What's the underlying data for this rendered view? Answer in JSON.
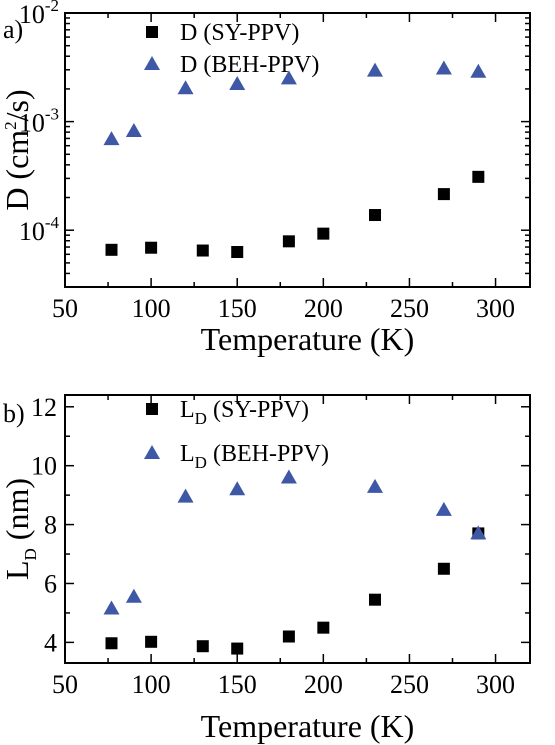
{
  "figure": {
    "chart_data": [
      {
        "panel_label": "a)",
        "type": "scatter",
        "xlabel": "Temperature (K)",
        "ylabel": "D (cm²/s)",
        "ylabel_parts": {
          "pre": "D (cm",
          "sup": "2",
          "post": "/s)"
        },
        "xlim": [
          50,
          320
        ],
        "ylim": [
          3e-05,
          0.01
        ],
        "yscale": "log",
        "xticks": [
          50,
          100,
          150,
          200,
          250,
          300
        ],
        "xtick_labels": [
          "50",
          "100",
          "150",
          "200",
          "250",
          "300"
        ],
        "yticks": [
          0.0001,
          0.001,
          0.01
        ],
        "ytick_labels": [
          {
            "base": "10",
            "exp": "-4"
          },
          {
            "base": "10",
            "exp": "-3"
          },
          {
            "base": "10",
            "exp": "-2"
          }
        ],
        "grid": false,
        "legend_position": "top-left",
        "series": [
          {
            "name": "D (SY-PPV)",
            "name_parts": {
              "main": "D (SY-PPV)",
              "sub": ""
            },
            "marker": "square",
            "color": "#000000",
            "x": [
              77,
              100,
              130,
              150,
              180,
              200,
              230,
              270,
              290
            ],
            "y": [
              6.6e-05,
              6.9e-05,
              6.5e-05,
              6.3e-05,
              7.9e-05,
              9.3e-05,
              0.000138,
              0.000215,
              0.00031
            ]
          },
          {
            "name": "D (BEH-PPV)",
            "name_parts": {
              "main": "D (BEH-PPV)",
              "sub": ""
            },
            "marker": "triangle",
            "color": "#3f58a6",
            "x": [
              77,
              90,
              120,
              150,
              180,
              230,
              270,
              290
            ],
            "y": [
              0.00069,
              0.00082,
              0.00203,
              0.00222,
              0.0025,
              0.00295,
              0.00308,
              0.00288
            ]
          }
        ]
      },
      {
        "panel_label": "b)",
        "type": "scatter",
        "xlabel": "Temperature (K)",
        "ylabel": "LD (nm)",
        "ylabel_parts": {
          "main": "L",
          "sub": "D",
          "post": " (nm)"
        },
        "xlim": [
          50,
          320
        ],
        "ylim": [
          3.3,
          12.4
        ],
        "yscale": "linear",
        "xticks": [
          50,
          100,
          150,
          200,
          250,
          300
        ],
        "xtick_labels": [
          "50",
          "100",
          "150",
          "200",
          "250",
          "300"
        ],
        "yticks": [
          4,
          6,
          8,
          10,
          12
        ],
        "ytick_labels": [
          "4",
          "6",
          "8",
          "10",
          "12"
        ],
        "grid": false,
        "legend_position": "top-left",
        "series": [
          {
            "name": "LD (SY-PPV)",
            "name_parts": {
              "main": "L",
              "sub": "D",
              "post": " (SY-PPV)"
            },
            "marker": "square",
            "color": "#000000",
            "x": [
              77,
              100,
              130,
              150,
              180,
              200,
              230,
              270,
              290
            ],
            "y": [
              3.97,
              4.02,
              3.87,
              3.79,
              4.2,
              4.5,
              5.45,
              6.5,
              7.7
            ]
          },
          {
            "name": "LD (BEH-PPV)",
            "name_parts": {
              "main": "L",
              "sub": "D",
              "post": " (BEH-PPV)"
            },
            "marker": "triangle",
            "color": "#3f58a6",
            "x": [
              77,
              90,
              120,
              150,
              180,
              230,
              270,
              290
            ],
            "y": [
              5.15,
              5.55,
              8.95,
              9.2,
              9.6,
              9.28,
              8.5,
              7.7
            ]
          }
        ]
      }
    ]
  }
}
